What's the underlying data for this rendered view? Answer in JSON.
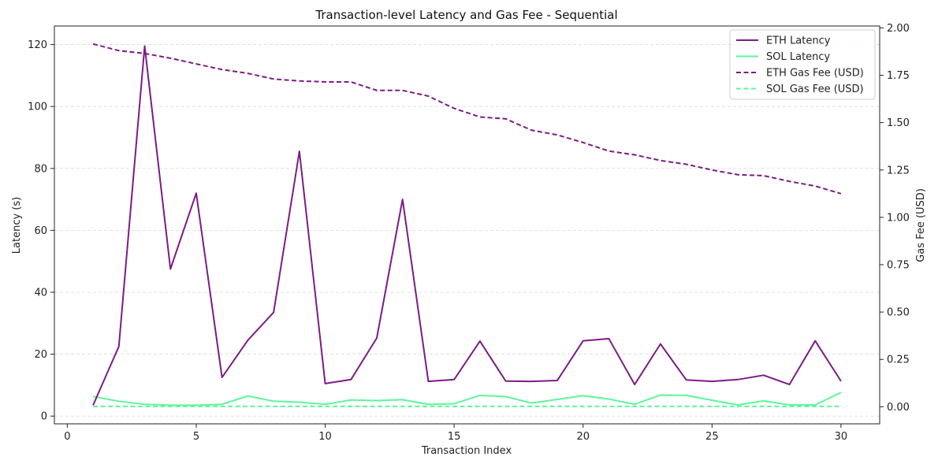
{
  "chart_data": {
    "type": "line",
    "title": "Transaction-level Latency and Gas Fee - Sequential",
    "xlabel": "Transaction Index",
    "ylabel": "Latency (s)",
    "y2label": "Gas Fee (USD)",
    "xlim": [
      -0.5,
      31.5
    ],
    "ylim": [
      -2.5,
      126
    ],
    "y2lim": [
      -0.09,
      2.01
    ],
    "x_ticks": [
      "0",
      "5",
      "10",
      "15",
      "20",
      "25",
      "30"
    ],
    "y_ticks": [
      "0",
      "20",
      "40",
      "60",
      "80",
      "100",
      "120"
    ],
    "y2_ticks": [
      "0.00",
      "0.25",
      "0.50",
      "0.75",
      "1.00",
      "1.25",
      "1.50",
      "1.75",
      "2.00"
    ],
    "grid": true,
    "legend_position": "top-right",
    "x": [
      1,
      2,
      3,
      4,
      5,
      6,
      7,
      8,
      9,
      10,
      11,
      12,
      13,
      14,
      15,
      16,
      17,
      18,
      19,
      20,
      21,
      22,
      23,
      24,
      25,
      26,
      27,
      28,
      29,
      30
    ],
    "series": [
      {
        "name": "ETH Latency",
        "axis": "left",
        "style": "solid",
        "color": "#7b1c86",
        "values": [
          3.5,
          22.5,
          119.5,
          47.5,
          72,
          12.5,
          24.5,
          33.5,
          85.5,
          10.5,
          11.8,
          25.2,
          70,
          11.2,
          11.8,
          24.2,
          11.3,
          11.2,
          11.5,
          24.3,
          25,
          10.2,
          23.3,
          11.7,
          11.2,
          11.8,
          13.2,
          10.2,
          24.3,
          11.3
        ]
      },
      {
        "name": "SOL Latency",
        "axis": "left",
        "style": "solid",
        "color": "#5ef59b",
        "values": [
          6.3,
          4.8,
          3.8,
          3.5,
          3.5,
          3.8,
          6.5,
          4.8,
          4.5,
          3.8,
          5.2,
          5,
          5.3,
          3.8,
          4,
          6.7,
          6.3,
          4.2,
          5.4,
          6.6,
          5.5,
          3.8,
          6.8,
          6.7,
          5.1,
          3.6,
          4.9,
          3.6,
          3.6,
          7.6
        ]
      },
      {
        "name": "ETH Gas Fee (USD)",
        "axis": "right",
        "style": "dashed",
        "color": "#7b1c86",
        "values": [
          1.915,
          1.88,
          1.865,
          1.84,
          1.81,
          1.78,
          1.76,
          1.73,
          1.72,
          1.715,
          1.715,
          1.67,
          1.67,
          1.64,
          1.575,
          1.53,
          1.52,
          1.46,
          1.435,
          1.395,
          1.35,
          1.33,
          1.3,
          1.28,
          1.25,
          1.225,
          1.22,
          1.19,
          1.165,
          1.125
        ]
      },
      {
        "name": "SOL Gas Fee (USD)",
        "axis": "right",
        "style": "dashed",
        "color": "#5ef59b",
        "values": [
          0.002,
          0.002,
          0.002,
          0.002,
          0.002,
          0.002,
          0.002,
          0.002,
          0.002,
          0.002,
          0.002,
          0.002,
          0.002,
          0.002,
          0.002,
          0.002,
          0.002,
          0.002,
          0.002,
          0.002,
          0.002,
          0.002,
          0.002,
          0.002,
          0.002,
          0.002,
          0.002,
          0.002,
          0.002,
          0.002
        ]
      }
    ]
  }
}
